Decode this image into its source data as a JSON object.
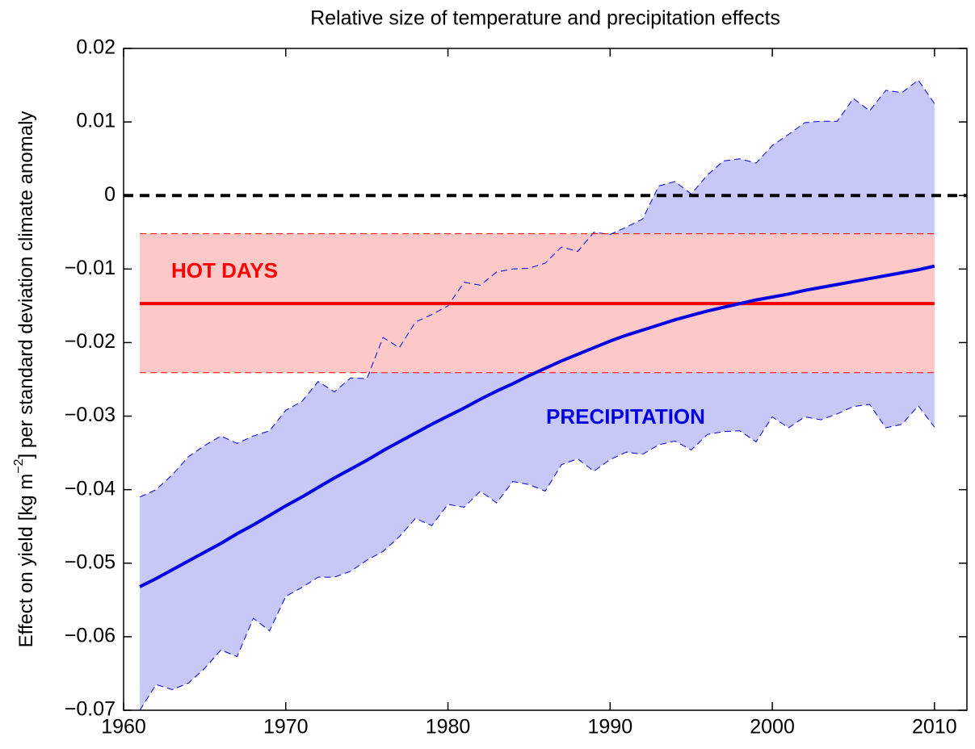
{
  "chart_data": {
    "type": "line",
    "title": "Relative size of temperature and precipitation effects",
    "y_label": "Effect on yield [kg m",
    "y_label_sup": "−2",
    "y_label_end": "] per standard deviation climate anomaly",
    "xlim": [
      1960,
      2012
    ],
    "ylim": [
      -0.07,
      0.02
    ],
    "xticks": [
      1960,
      1970,
      1980,
      1990,
      2000,
      2010
    ],
    "yticks": [
      {
        "value": -0.07,
        "label": "−0.07"
      },
      {
        "value": -0.06,
        "label": "−0.06"
      },
      {
        "value": -0.05,
        "label": "−0.05"
      },
      {
        "value": -0.04,
        "label": "−0.04"
      },
      {
        "value": -0.03,
        "label": "−0.03"
      },
      {
        "value": -0.02,
        "label": "−0.02"
      },
      {
        "value": -0.01,
        "label": "−0.01"
      },
      0,
      0.01,
      0.02
    ],
    "reference_line": 0,
    "x": [
      1961,
      1962,
      1963,
      1964,
      1965,
      1966,
      1967,
      1968,
      1969,
      1970,
      1971,
      1972,
      1973,
      1974,
      1975,
      1976,
      1977,
      1978,
      1979,
      1980,
      1981,
      1982,
      1983,
      1984,
      1985,
      1986,
      1987,
      1988,
      1989,
      1990,
      1991,
      1992,
      1993,
      1994,
      1995,
      1996,
      1997,
      1998,
      1999,
      2000,
      2001,
      2002,
      2003,
      2004,
      2005,
      2006,
      2007,
      2008,
      2009,
      2010
    ],
    "precipitation": {
      "label": "PRECIPITATION",
      "color": "#0000e0",
      "band_color": "#c8c8f8",
      "values": [
        -0.0532,
        -0.0521,
        -0.0509,
        -0.0497,
        -0.0485,
        -0.0473,
        -0.046,
        -0.0448,
        -0.0435,
        -0.0422,
        -0.041,
        -0.0397,
        -0.0384,
        -0.0372,
        -0.036,
        -0.0347,
        -0.0335,
        -0.0323,
        -0.0311,
        -0.03,
        -0.0289,
        -0.0277,
        -0.0266,
        -0.0256,
        -0.0245,
        -0.0235,
        -0.0225,
        -0.0216,
        -0.0207,
        -0.0198,
        -0.019,
        -0.0183,
        -0.0176,
        -0.0169,
        -0.0163,
        -0.0157,
        -0.0152,
        -0.0147,
        -0.0142,
        -0.0138,
        -0.0134,
        -0.0129,
        -0.0125,
        -0.0121,
        -0.0117,
        -0.0113,
        -0.0109,
        -0.0105,
        -0.0101,
        -0.0096
      ],
      "upper": [
        -0.041,
        -0.04,
        -0.038,
        -0.0355,
        -0.034,
        -0.0327,
        -0.0337,
        -0.0327,
        -0.032,
        -0.0292,
        -0.028,
        -0.0253,
        -0.0267,
        -0.0248,
        -0.0249,
        -0.0193,
        -0.0207,
        -0.0172,
        -0.0162,
        -0.015,
        -0.0118,
        -0.0122,
        -0.0104,
        -0.01,
        -0.0099,
        -0.0092,
        -0.007,
        -0.0076,
        -0.005,
        -0.0053,
        -0.0043,
        -0.0032,
        0.0013,
        0.0019,
        0.0002,
        0.0028,
        0.0047,
        0.005,
        0.0044,
        0.0068,
        0.0083,
        0.0099,
        0.0101,
        0.0101,
        0.0132,
        0.0115,
        0.0143,
        0.014,
        0.0157,
        0.0125
      ],
      "lower": [
        -0.07,
        -0.0665,
        -0.0672,
        -0.0663,
        -0.0643,
        -0.0618,
        -0.0627,
        -0.0575,
        -0.0592,
        -0.0545,
        -0.0533,
        -0.0519,
        -0.0519,
        -0.0511,
        -0.0496,
        -0.0484,
        -0.0464,
        -0.0439,
        -0.0449,
        -0.042,
        -0.0424,
        -0.0402,
        -0.0418,
        -0.0389,
        -0.0393,
        -0.0402,
        -0.0366,
        -0.0358,
        -0.0375,
        -0.0359,
        -0.0349,
        -0.0352,
        -0.0339,
        -0.0334,
        -0.0346,
        -0.0325,
        -0.0321,
        -0.032,
        -0.0335,
        -0.0301,
        -0.0316,
        -0.0301,
        -0.0305,
        -0.0297,
        -0.0287,
        -0.0284,
        -0.0316,
        -0.0311,
        -0.0286,
        -0.0315
      ]
    },
    "hot_days": {
      "label": "HOT DAYS",
      "color": "#ff0000",
      "band_color": "#fcc8c8",
      "x_start": 1961,
      "x_end": 2010,
      "value": -0.0147,
      "lower": -0.0241,
      "upper": -0.0052
    }
  }
}
